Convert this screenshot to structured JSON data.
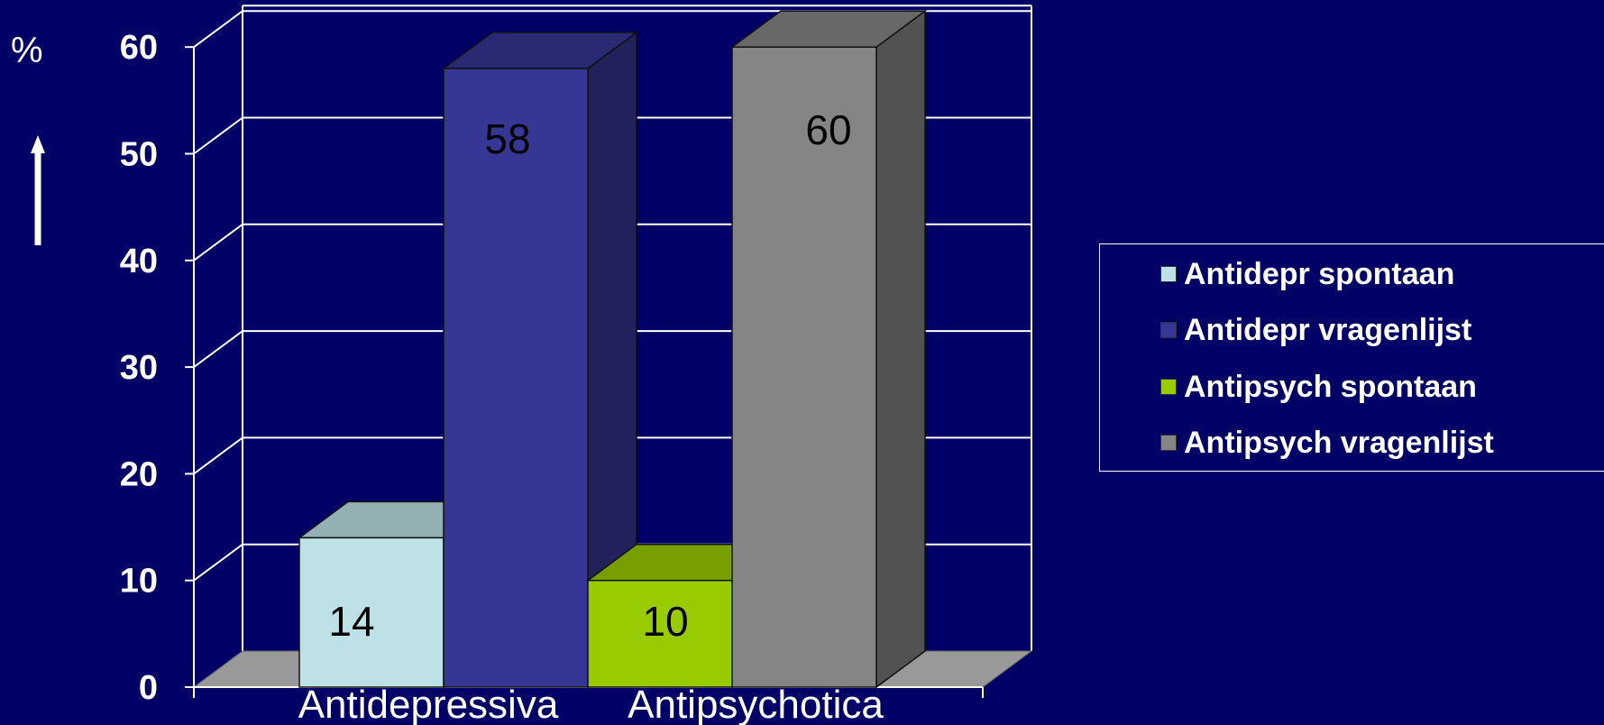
{
  "chart_data": {
    "type": "bar",
    "ylabel": "%",
    "ylim": [
      0,
      60
    ],
    "yticks": [
      0,
      10,
      20,
      30,
      40,
      50,
      60
    ],
    "categories": [
      "Antidepressiva",
      "Antipsychotica"
    ],
    "series": [
      {
        "name": "Antidepr spontaan",
        "category": "Antidepressiva",
        "value": 14,
        "color": "#BDE1E6",
        "label": "14"
      },
      {
        "name": "Antidepr vragenlijst",
        "category": "Antidepressiva",
        "value": 58,
        "color": "#363695",
        "label": "58"
      },
      {
        "name": "Antipsych spontaan",
        "category": "Antipsychotica",
        "value": 10,
        "color": "#99CC00",
        "label": "10"
      },
      {
        "name": "Antipsych vragenlijst",
        "category": "Antipsychotica",
        "value": 60,
        "color": "#858585",
        "label": "60"
      }
    ],
    "grid": true,
    "legend_position": "right"
  },
  "colors": {
    "background": "#000066",
    "gridline": "#ffffff",
    "floor": "#999999"
  }
}
